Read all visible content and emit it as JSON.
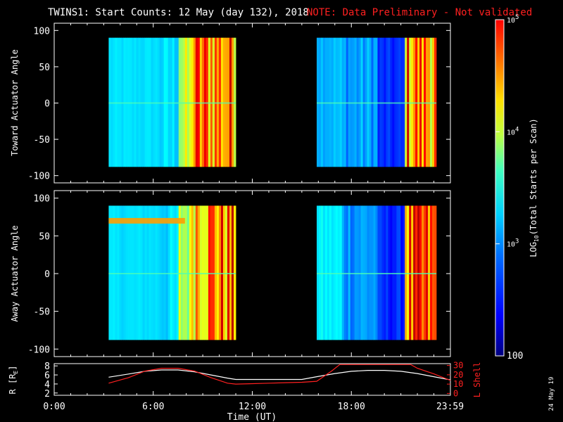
{
  "header": {
    "title": "TWINS1: Start Counts: 12 May (day 132), 2018",
    "note": "NOTE: Data Preliminary - Not validated"
  },
  "stamp": "24 May 19",
  "colors": {
    "background": "#000000",
    "foreground": "#ffffff",
    "note": "#ff2020",
    "r_line": "#ffffff",
    "lshell_line": "#ff2020"
  },
  "chart_data": [
    {
      "type": "heatmap",
      "ylabel": "Toward Actuator Angle",
      "ylim": [
        -110,
        110
      ],
      "yticks": [
        "100",
        "50",
        "0",
        "-50",
        "-100"
      ],
      "ytick_values": [
        100,
        50,
        0,
        -50,
        -100
      ],
      "x_range_hours": [
        0,
        24
      ],
      "data_extent_y": [
        -88,
        90
      ],
      "segments": [
        {
          "start_hour": 3.3,
          "end_hour": 11.0
        },
        {
          "start_hour": 15.9,
          "end_hour": 24.0
        }
      ]
    },
    {
      "type": "heatmap",
      "ylabel": "Away Actuator Angle",
      "ylim": [
        -110,
        110
      ],
      "yticks": [
        "100",
        "50",
        "0",
        "-50",
        "-100"
      ],
      "ytick_values": [
        100,
        50,
        0,
        -50,
        -100
      ],
      "x_range_hours": [
        0,
        24
      ],
      "data_extent_y": [
        -88,
        90
      ],
      "segments": [
        {
          "start_hour": 3.3,
          "end_hour": 11.0
        },
        {
          "start_hour": 15.9,
          "end_hour": 24.0
        }
      ]
    },
    {
      "type": "line",
      "ylabel_left": "R [R",
      "ylabel_left_sub": "E",
      "ylabel_left_end": "]",
      "ylabel_right": "L Shell",
      "xlabel": "Time (UT)",
      "x_tick_labels": [
        "0:00",
        "6:00",
        "12:00",
        "18:00",
        "23:59"
      ],
      "x_tick_hours": [
        0,
        6,
        12,
        18,
        23.98
      ],
      "left_ticks": [
        "8",
        "6",
        "4",
        "2"
      ],
      "left_tick_values": [
        8,
        6,
        4,
        2
      ],
      "left_ylim": [
        1.5,
        8.5
      ],
      "right_ticks": [
        "30",
        "20",
        "10",
        "0"
      ],
      "right_tick_values": [
        30,
        20,
        10,
        0
      ],
      "right_ylim": [
        -2,
        32
      ],
      "series": [
        {
          "axis": "left",
          "x": [
            3.3,
            4.5,
            5.5,
            6.5,
            7.5,
            8.5,
            9.5,
            10.5,
            11.0,
            12.0,
            13.0,
            14.0,
            15.0,
            15.9,
            17.0,
            18.0,
            19.0,
            20.0,
            21.0,
            22.0,
            23.0,
            24.0
          ],
          "y": [
            5.5,
            6.2,
            6.8,
            7.1,
            7.1,
            6.7,
            6.0,
            5.3,
            5.0,
            5.0,
            5.0,
            5.0,
            5.0,
            5.6,
            6.3,
            6.8,
            7.0,
            7.0,
            6.8,
            6.3,
            5.6,
            4.9
          ]
        },
        {
          "axis": "right",
          "x": [
            3.3,
            4.5,
            5.5,
            6.5,
            7.5,
            8.5,
            9.5,
            10.5,
            11.0,
            12.0,
            13.0,
            14.0,
            15.0,
            15.9,
            16.8,
            17.3,
            21.6,
            22.0,
            23.0,
            24.0
          ],
          "y": [
            11,
            17,
            24,
            27,
            27,
            24,
            17,
            11,
            10,
            10.5,
            11,
            11.5,
            12,
            13,
            24,
            31,
            31,
            27,
            21,
            14
          ]
        }
      ]
    }
  ],
  "colorbar": {
    "type": "colorbar",
    "scale": "log",
    "range": [
      100,
      100000
    ],
    "label_prefix": "LOG",
    "label_sub": "10",
    "label_rest": "(Total Starts per Scan)",
    "ticks": [
      {
        "value": 100000,
        "base": "10",
        "exp": "5"
      },
      {
        "value": 10000,
        "base": "10",
        "exp": "4"
      },
      {
        "value": 1000,
        "base": "10",
        "exp": "3"
      },
      {
        "value": 100,
        "base": "100",
        "exp": ""
      }
    ]
  }
}
